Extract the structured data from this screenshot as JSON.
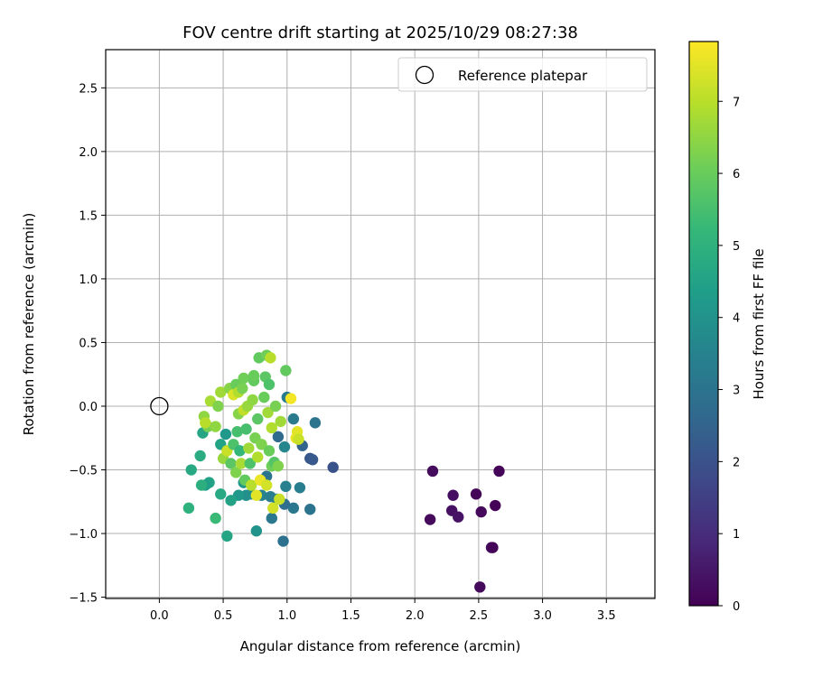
{
  "chart_data": {
    "type": "scatter",
    "title": "FOV centre drift starting at 2025/10/29 08:27:38",
    "xlabel": "Angular distance from reference (arcmin)",
    "ylabel": "Rotation from reference (arcmin)",
    "xlim": [
      -0.42,
      3.88
    ],
    "ylim": [
      -1.51,
      2.8
    ],
    "xticks": [
      0.0,
      0.5,
      1.0,
      1.5,
      2.0,
      2.5,
      3.0,
      3.5
    ],
    "xtick_labels": [
      "0.0",
      "0.5",
      "1.0",
      "1.5",
      "2.0",
      "2.5",
      "3.0",
      "3.5"
    ],
    "yticks": [
      -1.5,
      -1.0,
      -0.5,
      0.0,
      0.5,
      1.0,
      1.5,
      2.0,
      2.5
    ],
    "ytick_labels": [
      "−1.5",
      "−1.0",
      "−0.5",
      "0.0",
      "0.5",
      "1.0",
      "1.5",
      "2.0",
      "2.5"
    ],
    "grid": true,
    "legend": {
      "position": "top-right",
      "entries": [
        "Reference platepar"
      ]
    },
    "reference_point": {
      "x": 0.0,
      "y": 0.0,
      "label": "Reference platepar"
    },
    "colorbar": {
      "label": "Hours from first FF file",
      "colormap": "viridis",
      "range": [
        0,
        7.83
      ],
      "ticks": [
        0,
        1,
        2,
        3,
        4,
        5,
        6,
        7
      ],
      "tick_labels": [
        "0",
        "1",
        "2",
        "3",
        "4",
        "5",
        "6",
        "7"
      ]
    },
    "colormap_stops": [
      "#440154",
      "#482878",
      "#3e4989",
      "#31688e",
      "#26828e",
      "#1f9e89",
      "#35b779",
      "#6ece58",
      "#b5de2b",
      "#fde725"
    ],
    "points": [
      {
        "x": 2.14,
        "y": -0.51,
        "t": 0.25
      },
      {
        "x": 2.12,
        "y": -0.89,
        "t": 0.2
      },
      {
        "x": 2.3,
        "y": -0.7,
        "t": 0.3
      },
      {
        "x": 2.29,
        "y": -0.82,
        "t": 0.35
      },
      {
        "x": 2.34,
        "y": -0.87,
        "t": 0.4
      },
      {
        "x": 2.48,
        "y": -0.69,
        "t": 0.1
      },
      {
        "x": 2.52,
        "y": -0.83,
        "t": 0.15
      },
      {
        "x": 2.51,
        "y": -1.42,
        "t": 0.2
      },
      {
        "x": 2.6,
        "y": -1.11,
        "t": 0.3
      },
      {
        "x": 2.61,
        "y": -1.11,
        "t": 0.1
      },
      {
        "x": 2.63,
        "y": -0.78,
        "t": 0.05
      },
      {
        "x": 2.66,
        "y": -0.51,
        "t": 0.1
      },
      {
        "x": 1.36,
        "y": -0.48,
        "t": 2.0
      },
      {
        "x": 1.18,
        "y": -0.41,
        "t": 2.1
      },
      {
        "x": 1.2,
        "y": -0.42,
        "t": 2.2
      },
      {
        "x": 1.22,
        "y": -0.13,
        "t": 3.0
      },
      {
        "x": 1.18,
        "y": -0.81,
        "t": 3.0
      },
      {
        "x": 1.12,
        "y": -0.31,
        "t": 2.5
      },
      {
        "x": 1.1,
        "y": -0.64,
        "t": 3.3
      },
      {
        "x": 1.05,
        "y": -0.8,
        "t": 3.1
      },
      {
        "x": 1.05,
        "y": -0.1,
        "t": 3.2
      },
      {
        "x": 1.0,
        "y": 0.07,
        "t": 3.2
      },
      {
        "x": 0.99,
        "y": -0.63,
        "t": 3.4
      },
      {
        "x": 0.98,
        "y": -0.77,
        "t": 2.8
      },
      {
        "x": 0.97,
        "y": -1.06,
        "t": 2.9
      },
      {
        "x": 0.98,
        "y": -0.32,
        "t": 3.6
      },
      {
        "x": 0.93,
        "y": -0.24,
        "t": 2.7
      },
      {
        "x": 0.92,
        "y": -0.73,
        "t": 3.5
      },
      {
        "x": 0.88,
        "y": -0.88,
        "t": 3.1
      },
      {
        "x": 0.87,
        "y": -0.71,
        "t": 3.3
      },
      {
        "x": 0.84,
        "y": -0.55,
        "t": 3.0
      },
      {
        "x": 0.8,
        "y": -0.7,
        "t": 3.5
      },
      {
        "x": 0.76,
        "y": -0.98,
        "t": 4.0
      },
      {
        "x": 0.72,
        "y": -0.69,
        "t": 3.8
      },
      {
        "x": 0.68,
        "y": -0.7,
        "t": 3.9
      },
      {
        "x": 0.66,
        "y": -0.6,
        "t": 4.1
      },
      {
        "x": 0.62,
        "y": -0.7,
        "t": 4.2
      },
      {
        "x": 0.56,
        "y": -0.74,
        "t": 4.5
      },
      {
        "x": 0.53,
        "y": -1.02,
        "t": 4.6
      },
      {
        "x": 0.48,
        "y": -0.69,
        "t": 4.7
      },
      {
        "x": 0.44,
        "y": -0.88,
        "t": 5.3
      },
      {
        "x": 0.39,
        "y": -0.6,
        "t": 4.5
      },
      {
        "x": 0.36,
        "y": -0.62,
        "t": 4.4
      },
      {
        "x": 0.33,
        "y": -0.62,
        "t": 4.9
      },
      {
        "x": 0.32,
        "y": -0.39,
        "t": 4.8
      },
      {
        "x": 0.25,
        "y": -0.5,
        "t": 4.7
      },
      {
        "x": 0.23,
        "y": -0.8,
        "t": 5.0
      },
      {
        "x": 0.34,
        "y": -0.21,
        "t": 4.6
      },
      {
        "x": 0.38,
        "y": -0.16,
        "t": 6.2
      },
      {
        "x": 0.35,
        "y": -0.08,
        "t": 6.5
      },
      {
        "x": 0.36,
        "y": -0.13,
        "t": 7.0
      },
      {
        "x": 0.4,
        "y": 0.04,
        "t": 6.8
      },
      {
        "x": 0.44,
        "y": -0.16,
        "t": 6.5
      },
      {
        "x": 0.46,
        "y": 0.0,
        "t": 6.3
      },
      {
        "x": 0.48,
        "y": 0.11,
        "t": 6.7
      },
      {
        "x": 0.48,
        "y": -0.3,
        "t": 4.5
      },
      {
        "x": 0.5,
        "y": -0.41,
        "t": 6.6
      },
      {
        "x": 0.52,
        "y": -0.22,
        "t": 4.2
      },
      {
        "x": 0.53,
        "y": -0.35,
        "t": 7.2
      },
      {
        "x": 0.55,
        "y": 0.14,
        "t": 6.4
      },
      {
        "x": 0.56,
        "y": -0.45,
        "t": 5.8
      },
      {
        "x": 0.58,
        "y": -0.3,
        "t": 5.6
      },
      {
        "x": 0.58,
        "y": 0.09,
        "t": 7.4
      },
      {
        "x": 0.6,
        "y": -0.52,
        "t": 6.3
      },
      {
        "x": 0.6,
        "y": 0.17,
        "t": 6.0
      },
      {
        "x": 0.61,
        "y": -0.2,
        "t": 5.5
      },
      {
        "x": 0.62,
        "y": -0.06,
        "t": 6.4
      },
      {
        "x": 0.62,
        "y": 0.11,
        "t": 6.9
      },
      {
        "x": 0.63,
        "y": -0.35,
        "t": 5.2
      },
      {
        "x": 0.64,
        "y": -0.45,
        "t": 6.8
      },
      {
        "x": 0.65,
        "y": 0.14,
        "t": 6.2
      },
      {
        "x": 0.66,
        "y": -0.03,
        "t": 7.1
      },
      {
        "x": 0.66,
        "y": 0.22,
        "t": 6.1
      },
      {
        "x": 0.67,
        "y": -0.58,
        "t": 5.9
      },
      {
        "x": 0.68,
        "y": -0.18,
        "t": 5.5
      },
      {
        "x": 0.69,
        "y": 0.0,
        "t": 6.6
      },
      {
        "x": 0.7,
        "y": -0.33,
        "t": 6.7
      },
      {
        "x": 0.71,
        "y": -0.45,
        "t": 5.6
      },
      {
        "x": 0.72,
        "y": -0.62,
        "t": 7.0
      },
      {
        "x": 0.73,
        "y": 0.05,
        "t": 6.5
      },
      {
        "x": 0.74,
        "y": 0.2,
        "t": 5.9
      },
      {
        "x": 0.74,
        "y": 0.24,
        "t": 6.0
      },
      {
        "x": 0.75,
        "y": -0.25,
        "t": 6.2
      },
      {
        "x": 0.76,
        "y": -0.7,
        "t": 7.5
      },
      {
        "x": 0.77,
        "y": -0.1,
        "t": 5.8
      },
      {
        "x": 0.77,
        "y": -0.4,
        "t": 6.9
      },
      {
        "x": 0.78,
        "y": 0.38,
        "t": 5.9
      },
      {
        "x": 0.79,
        "y": -0.58,
        "t": 7.6
      },
      {
        "x": 0.8,
        "y": -0.3,
        "t": 6.3
      },
      {
        "x": 0.82,
        "y": 0.07,
        "t": 6.0
      },
      {
        "x": 0.83,
        "y": 0.23,
        "t": 5.8
      },
      {
        "x": 0.84,
        "y": 0.4,
        "t": 6.1
      },
      {
        "x": 0.84,
        "y": -0.62,
        "t": 7.3
      },
      {
        "x": 0.85,
        "y": -0.05,
        "t": 6.7
      },
      {
        "x": 0.86,
        "y": -0.35,
        "t": 6.0
      },
      {
        "x": 0.86,
        "y": 0.17,
        "t": 5.6
      },
      {
        "x": 0.87,
        "y": 0.38,
        "t": 7.0
      },
      {
        "x": 0.88,
        "y": -0.17,
        "t": 6.9
      },
      {
        "x": 0.88,
        "y": -0.47,
        "t": 6.1
      },
      {
        "x": 0.89,
        "y": -0.8,
        "t": 7.3
      },
      {
        "x": 0.9,
        "y": -0.44,
        "t": 5.7
      },
      {
        "x": 0.91,
        "y": 0.0,
        "t": 6.2
      },
      {
        "x": 0.93,
        "y": -0.47,
        "t": 6.3
      },
      {
        "x": 0.94,
        "y": -0.73,
        "t": 7.2
      },
      {
        "x": 0.95,
        "y": -0.12,
        "t": 6.7
      },
      {
        "x": 0.99,
        "y": 0.28,
        "t": 5.9
      },
      {
        "x": 1.03,
        "y": 0.06,
        "t": 7.7
      },
      {
        "x": 1.07,
        "y": -0.25,
        "t": 7.6
      },
      {
        "x": 1.08,
        "y": -0.2,
        "t": 7.5
      },
      {
        "x": 1.09,
        "y": -0.26,
        "t": 7.2
      }
    ]
  }
}
